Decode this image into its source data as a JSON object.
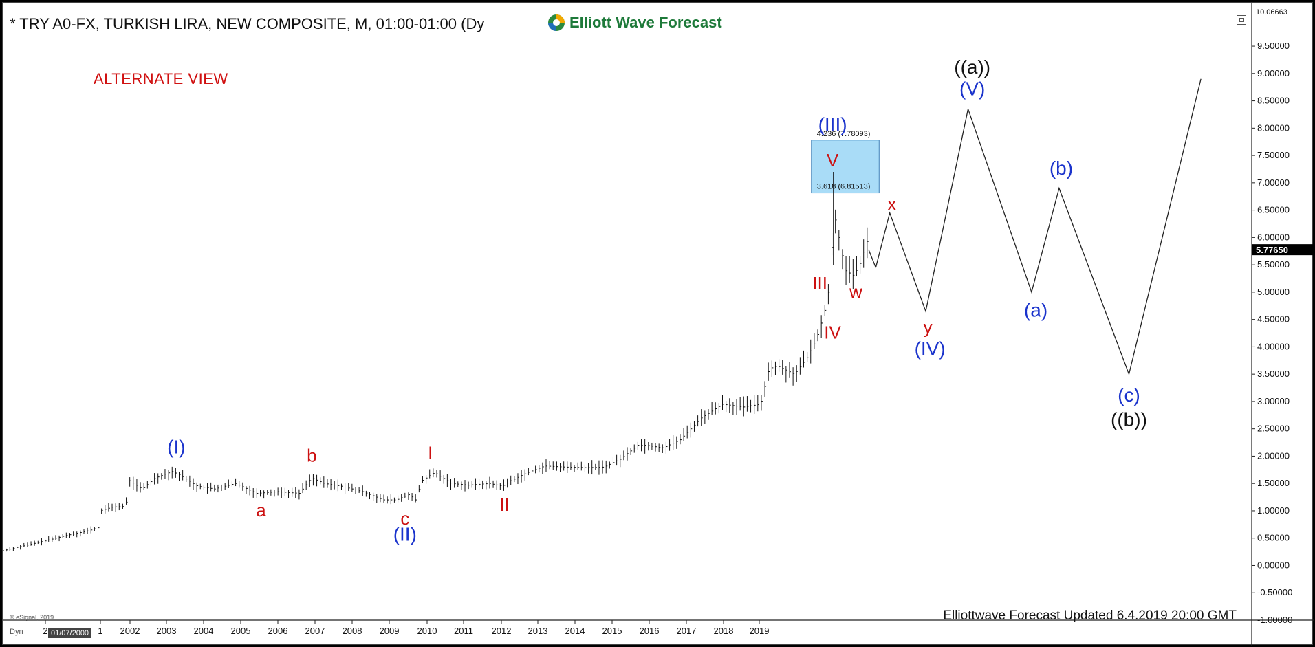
{
  "header": {
    "title": "* TRY A0-FX, TURKISH LIRA, NEW COMPOSITE, M, 01:00-01:00 (Dy",
    "logo_text": "Elliott Wave Forecast"
  },
  "annotations": {
    "alternate_view": "ALTERNATE VIEW",
    "updated": "Elliottwave Forecast Updated 6.4.2019 20:00 GMT",
    "copyright": "© eSignal, 2019",
    "dyn_label": "Dyn",
    "date_box": "01/07/2000"
  },
  "colors": {
    "blue_labels": "#1a33cc",
    "red_labels": "#cc1111",
    "black_labels": "#111111",
    "fib_box": "#a9dcf7",
    "logo_green": "#1e7a3a"
  },
  "chart_data": {
    "type": "line",
    "instrument": "TRY A0-FX, TURKISH LIRA, NEW COMPOSITE, M",
    "x_ticks": [
      "2",
      "1",
      "2002",
      "2003",
      "2004",
      "2005",
      "2006",
      "2007",
      "2008",
      "2009",
      "2010",
      "2011",
      "2012",
      "2013",
      "2014",
      "2015",
      "2016",
      "2017",
      "2018",
      "2019"
    ],
    "y_ticks": [
      "9.50000",
      "9.00000",
      "8.50000",
      "8.00000",
      "7.50000",
      "7.00000",
      "6.50000",
      "6.00000",
      "5.50000",
      "5.00000",
      "4.50000",
      "4.00000",
      "3.50000",
      "3.00000",
      "2.50000",
      "2.00000",
      "1.50000",
      "1.00000",
      "0.50000",
      "0.00000",
      "-0.50000",
      "-1.00000"
    ],
    "y_top_label": "10.06663",
    "last_price_label": "5.77650",
    "last_price": 5.7765,
    "ylim": [
      -1.0,
      10.0666
    ],
    "xlim": [
      1999.0,
      2026.0
    ],
    "price_history": [
      [
        1999.0,
        0.27
      ],
      [
        1999.5,
        0.36
      ],
      [
        2000.0,
        0.45
      ],
      [
        2000.5,
        0.55
      ],
      [
        2001.0,
        0.63
      ],
      [
        2001.25,
        0.69
      ],
      [
        2001.3,
        1.0
      ],
      [
        2001.6,
        1.07
      ],
      [
        2001.9,
        1.08
      ],
      [
        2002.0,
        1.55
      ],
      [
        2002.3,
        1.4
      ],
      [
        2002.6,
        1.6
      ],
      [
        2003.0,
        1.72
      ],
      [
        2003.2,
        1.65
      ],
      [
        2003.6,
        1.45
      ],
      [
        2004.0,
        1.4
      ],
      [
        2004.5,
        1.5
      ],
      [
        2005.0,
        1.32
      ],
      [
        2005.5,
        1.35
      ],
      [
        2006.0,
        1.32
      ],
      [
        2006.3,
        1.6
      ],
      [
        2006.6,
        1.5
      ],
      [
        2007.0,
        1.45
      ],
      [
        2007.5,
        1.35
      ],
      [
        2008.0,
        1.2
      ],
      [
        2008.3,
        1.2
      ],
      [
        2008.6,
        1.3
      ],
      [
        2008.75,
        1.2
      ],
      [
        2008.9,
        1.55
      ],
      [
        2009.2,
        1.7
      ],
      [
        2009.6,
        1.5
      ],
      [
        2010.0,
        1.47
      ],
      [
        2010.5,
        1.5
      ],
      [
        2010.8,
        1.45
      ],
      [
        2011.0,
        1.55
      ],
      [
        2011.4,
        1.7
      ],
      [
        2011.8,
        1.82
      ],
      [
        2012.3,
        1.8
      ],
      [
        2012.8,
        1.79
      ],
      [
        2013.2,
        1.8
      ],
      [
        2013.6,
        1.95
      ],
      [
        2014.0,
        2.2
      ],
      [
        2014.2,
        2.2
      ],
      [
        2014.6,
        2.15
      ],
      [
        2015.0,
        2.3
      ],
      [
        2015.5,
        2.7
      ],
      [
        2016.0,
        2.95
      ],
      [
        2016.5,
        2.9
      ],
      [
        2016.9,
        2.95
      ],
      [
        2017.1,
        3.6
      ],
      [
        2017.3,
        3.65
      ],
      [
        2017.7,
        3.5
      ],
      [
        2018.0,
        3.8
      ],
      [
        2018.2,
        4.1
      ],
      [
        2018.4,
        4.6
      ],
      [
        2018.55,
        5.2
      ],
      [
        2018.62,
        6.5
      ],
      [
        2018.75,
        6.0
      ],
      [
        2018.9,
        5.4
      ],
      [
        2019.1,
        5.3
      ],
      [
        2019.3,
        5.6
      ],
      [
        2019.4,
        6.0
      ],
      [
        2019.45,
        5.78
      ]
    ],
    "forecast_path": [
      [
        2019.45,
        5.78
      ],
      [
        2019.62,
        5.45
      ],
      [
        2019.95,
        6.45
      ],
      [
        2020.8,
        4.65
      ],
      [
        2021.8,
        8.35
      ],
      [
        2023.3,
        5.0
      ],
      [
        2023.95,
        6.9
      ],
      [
        2025.6,
        3.5
      ],
      [
        2027.3,
        8.9
      ]
    ],
    "fib_zone": {
      "top": 7.78093,
      "bottom": 6.81513,
      "x_start": 2018.1,
      "x_end": 2019.7
    },
    "fib_labels": [
      "4.236 (7.78093)",
      "3.618 (6.81513)"
    ],
    "wave_labels": [
      {
        "text": "(I)",
        "x": 2003.1,
        "y": 2.05,
        "color": "blue"
      },
      {
        "text": "(II)",
        "x": 2008.5,
        "y": 0.45,
        "color": "blue"
      },
      {
        "text": "(III)",
        "x": 2018.6,
        "y": 7.95,
        "color": "blue"
      },
      {
        "text": "(IV)",
        "x": 2020.9,
        "y": 3.85,
        "color": "blue"
      },
      {
        "text": "(V)",
        "x": 2021.9,
        "y": 8.6,
        "color": "blue"
      },
      {
        "text": "(a)",
        "x": 2023.4,
        "y": 4.55,
        "color": "blue"
      },
      {
        "text": "(b)",
        "x": 2024.0,
        "y": 7.15,
        "color": "blue"
      },
      {
        "text": "(c)",
        "x": 2025.6,
        "y": 3.0,
        "color": "blue"
      },
      {
        "text": "a",
        "x": 2005.1,
        "y": 0.9,
        "color": "red"
      },
      {
        "text": "b",
        "x": 2006.3,
        "y": 1.9,
        "color": "red"
      },
      {
        "text": "c",
        "x": 2008.5,
        "y": 0.75,
        "color": "red"
      },
      {
        "text": "I",
        "x": 2009.1,
        "y": 1.95,
        "color": "red"
      },
      {
        "text": "II",
        "x": 2010.85,
        "y": 1.0,
        "color": "red"
      },
      {
        "text": "III",
        "x": 2018.3,
        "y": 5.05,
        "color": "red"
      },
      {
        "text": "IV",
        "x": 2018.6,
        "y": 4.15,
        "color": "red"
      },
      {
        "text": "V",
        "x": 2018.6,
        "y": 7.3,
        "color": "red"
      },
      {
        "text": "w",
        "x": 2019.15,
        "y": 4.9,
        "color": "red"
      },
      {
        "text": "x",
        "x": 2020.0,
        "y": 6.5,
        "color": "red"
      },
      {
        "text": "y",
        "x": 2020.85,
        "y": 4.25,
        "color": "red"
      },
      {
        "text": "((a))",
        "x": 2021.9,
        "y": 9.0,
        "color": "black"
      },
      {
        "text": "((b))",
        "x": 2025.6,
        "y": 2.55,
        "color": "black"
      }
    ]
  }
}
